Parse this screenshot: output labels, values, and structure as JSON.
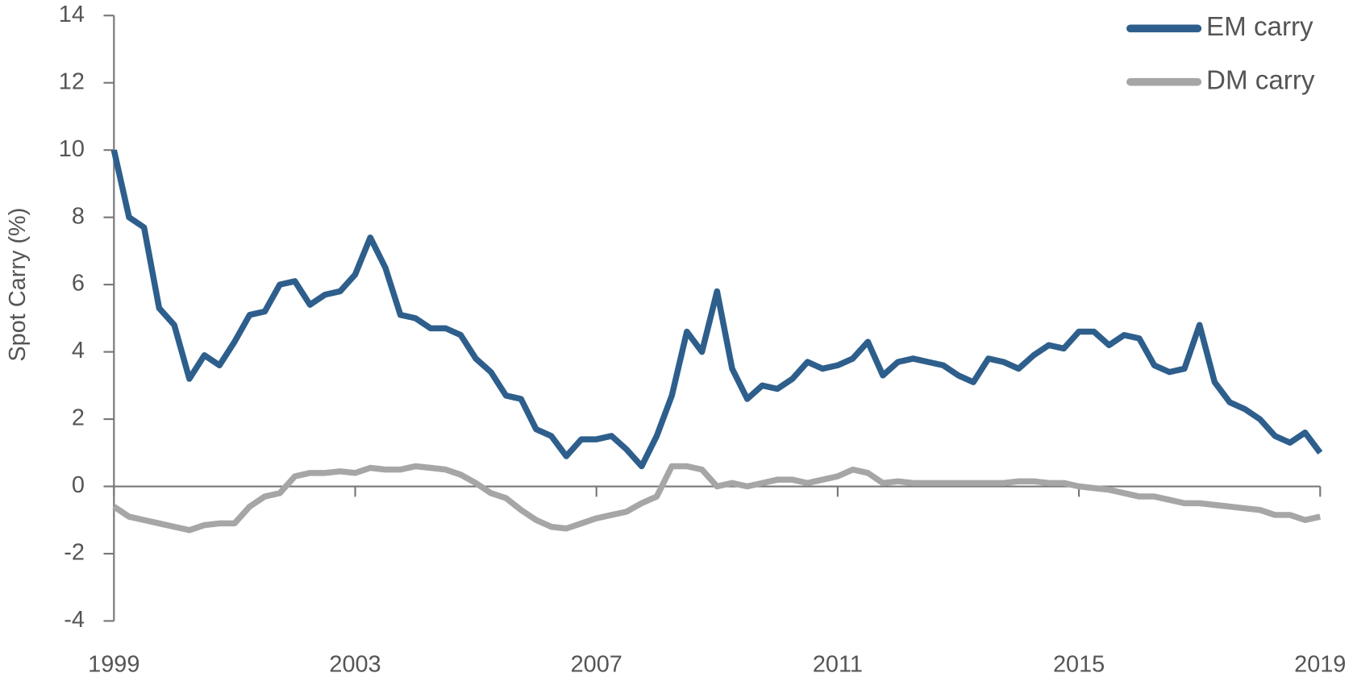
{
  "chart_data": {
    "type": "line",
    "y_label": "Spot Carry (%)",
    "x": [
      1999,
      1999.25,
      1999.5,
      1999.75,
      2000,
      2000.25,
      2000.5,
      2000.75,
      2001,
      2001.25,
      2001.5,
      2001.75,
      2002,
      2002.25,
      2002.5,
      2002.75,
      2003,
      2003.25,
      2003.5,
      2003.75,
      2004,
      2004.25,
      2004.5,
      2004.75,
      2005,
      2005.25,
      2005.5,
      2005.75,
      2006,
      2006.25,
      2006.5,
      2006.75,
      2007,
      2007.25,
      2007.5,
      2007.75,
      2008,
      2008.25,
      2008.5,
      2008.75,
      2009,
      2009.25,
      2009.5,
      2009.75,
      2010,
      2010.25,
      2010.5,
      2010.75,
      2011,
      2011.25,
      2011.5,
      2011.75,
      2012,
      2012.25,
      2012.5,
      2012.75,
      2013,
      2013.25,
      2013.5,
      2013.75,
      2014,
      2014.25,
      2014.5,
      2014.75,
      2015,
      2015.25,
      2015.5,
      2015.75,
      2016,
      2016.25,
      2016.5,
      2016.75,
      2017,
      2017.25,
      2017.5,
      2017.75,
      2018,
      2018.25,
      2018.5,
      2018.75,
      2019
    ],
    "series": [
      {
        "name": "EM carry",
        "color": "#2e5f8c",
        "values": [
          10,
          8.0,
          7.7,
          5.3,
          4.8,
          3.2,
          3.9,
          3.6,
          4.3,
          5.1,
          5.2,
          6.0,
          6.1,
          5.4,
          5.7,
          5.8,
          6.3,
          7.4,
          6.5,
          5.1,
          5.0,
          4.7,
          4.7,
          4.5,
          3.8,
          3.4,
          2.7,
          2.6,
          1.7,
          1.5,
          0.9,
          1.4,
          1.4,
          1.5,
          1.1,
          0.6,
          1.5,
          2.7,
          4.6,
          4.0,
          5.8,
          3.5,
          2.6,
          3.0,
          2.9,
          3.2,
          3.7,
          3.5,
          3.6,
          3.8,
          4.3,
          3.3,
          3.7,
          3.8,
          3.7,
          3.6,
          3.3,
          3.1,
          3.8,
          3.7,
          3.5,
          3.9,
          4.2,
          4.1,
          4.6,
          4.6,
          4.2,
          4.5,
          4.4,
          3.6,
          3.4,
          3.5,
          4.8,
          3.1,
          2.5,
          2.3,
          2.0,
          1.5,
          1.3,
          1.6,
          1.0
        ]
      },
      {
        "name": "DM carry",
        "color": "#a6a6a6",
        "values": [
          -0.6,
          -0.9,
          -1.0,
          -1.1,
          -1.2,
          -1.3,
          -1.15,
          -1.1,
          -1.1,
          -0.6,
          -0.3,
          -0.2,
          0.3,
          0.4,
          0.4,
          0.45,
          0.4,
          0.55,
          0.5,
          0.5,
          0.6,
          0.55,
          0.5,
          0.35,
          0.1,
          -0.2,
          -0.35,
          -0.7,
          -1.0,
          -1.2,
          -1.25,
          -1.1,
          -0.95,
          -0.85,
          -0.75,
          -0.5,
          -0.3,
          0.6,
          0.6,
          0.5,
          0.0,
          0.1,
          0.0,
          0.1,
          0.2,
          0.2,
          0.1,
          0.2,
          0.3,
          0.5,
          0.4,
          0.1,
          0.15,
          0.1,
          0.1,
          0.1,
          0.1,
          0.1,
          0.1,
          0.1,
          0.15,
          0.15,
          0.1,
          0.1,
          0.0,
          -0.05,
          -0.1,
          -0.2,
          -0.3,
          -0.3,
          -0.4,
          -0.5,
          -0.5,
          -0.55,
          -0.6,
          -0.65,
          -0.7,
          -0.85,
          -0.85,
          -1.0,
          -0.9
        ]
      }
    ],
    "xlim": [
      1999,
      2019
    ],
    "xticks": [
      1999,
      2003,
      2007,
      2011,
      2015,
      2019
    ],
    "ylim": [
      -4,
      14
    ],
    "yticks": [
      -4,
      -2,
      0,
      2,
      4,
      6,
      8,
      10,
      12,
      14
    ],
    "legend": "top-right"
  }
}
